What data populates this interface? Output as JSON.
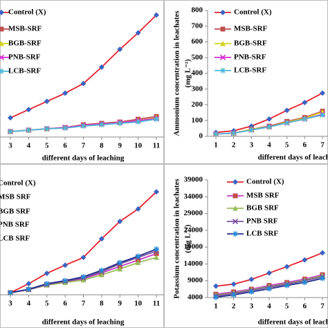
{
  "chart_data": [
    {
      "type": "line",
      "x": [
        3,
        4,
        5,
        6,
        7,
        8,
        9,
        10,
        11
      ],
      "xlim": [
        3,
        11
      ],
      "xticks": [
        3,
        4,
        5,
        6,
        7,
        8,
        9,
        10,
        11
      ],
      "ylim": [
        0,
        100
      ],
      "xlabel": "different days of leaching",
      "series": [
        {
          "name": "Control (X)",
          "color": "#e4202a",
          "marker_color": "#3a63c4",
          "marker": "diamond",
          "values": [
            14,
            20,
            26,
            32,
            39,
            51,
            64,
            76,
            89
          ]
        },
        {
          "name": "MSB-SRF",
          "color": "#c0504d",
          "marker_color": "#c0504d",
          "marker": "square",
          "values": [
            4,
            5,
            6,
            7,
            9,
            10,
            11,
            13,
            15
          ]
        },
        {
          "name": "BGB-SRF",
          "color": "#d4d41c",
          "marker_color": "#d4d41c",
          "marker": "triangle",
          "values": [
            4,
            5,
            6,
            7,
            8.5,
            9.5,
            10.5,
            12,
            14
          ]
        },
        {
          "name": "PNB-SRF",
          "color": "#d62ad6",
          "marker_color": "#d62ad6",
          "marker": "x",
          "values": [
            4,
            5,
            6,
            7,
            8.5,
            9.5,
            10.5,
            12,
            13.5
          ]
        },
        {
          "name": "LCB-SRF",
          "color": "#4cb8d8",
          "marker_color": "#4cb8d8",
          "marker": "star",
          "values": [
            4,
            5,
            6,
            6.5,
            8,
            9,
            10,
            11,
            13
          ]
        }
      ]
    },
    {
      "type": "line",
      "x": [
        1,
        2,
        3,
        4,
        5,
        6,
        7
      ],
      "xlim": [
        1,
        7
      ],
      "xticks": [
        1,
        2,
        3,
        4,
        5,
        6,
        7
      ],
      "ylim": [
        0,
        800
      ],
      "yticks": [
        0,
        100,
        200,
        300,
        400,
        500,
        600,
        700,
        800
      ],
      "ylabel": [
        "Ammonium concentration in leachates",
        "(mg L⁻¹)"
      ],
      "xlabel": "different days of leaching",
      "series": [
        {
          "name": "Control (X)",
          "color": "#e4202a",
          "marker_color": "#3a63c4",
          "marker": "diamond",
          "values": [
            25,
            35,
            65,
            110,
            165,
            215,
            275
          ]
        },
        {
          "name": "MSB-SRF",
          "color": "#c0504d",
          "marker_color": "#c0504d",
          "marker": "square",
          "values": [
            15,
            20,
            45,
            65,
            95,
            120,
            160
          ]
        },
        {
          "name": "BGB-SRF",
          "color": "#d4d41c",
          "marker_color": "#d4d41c",
          "marker": "triangle",
          "values": [
            15,
            20,
            45,
            60,
            90,
            115,
            155
          ]
        },
        {
          "name": "PNB-SRF",
          "color": "#d62ad6",
          "marker_color": "#d62ad6",
          "marker": "x",
          "values": [
            15,
            20,
            40,
            60,
            85,
            110,
            140
          ]
        },
        {
          "name": "LCB-SRF",
          "color": "#4cb8d8",
          "marker_color": "#4cb8d8",
          "marker": "star",
          "values": [
            15,
            20,
            40,
            60,
            85,
            110,
            135
          ]
        }
      ]
    },
    {
      "type": "line",
      "x": [
        3,
        4,
        5,
        6,
        7,
        8,
        9,
        10,
        11
      ],
      "xlim": [
        3,
        11
      ],
      "xticks": [
        3,
        4,
        5,
        6,
        7,
        8,
        9,
        10,
        11
      ],
      "ylim": [
        0,
        100
      ],
      "xlabel": "different days of leaching",
      "series": [
        {
          "name": "Control (X)",
          "color": "#e4202a",
          "marker_color": "#3a63c4",
          "marker": "diamond",
          "values": [
            1.6,
            8.6,
            16.7,
            23,
            29,
            43.5,
            57,
            66.7,
            80
          ]
        },
        {
          "name": "MSB SRF",
          "color": "#c43cc4",
          "marker_color": "#c0504d",
          "marker": "square",
          "values": [
            1.6,
            4,
            7.5,
            10,
            12.5,
            17,
            22,
            27,
            32
          ]
        },
        {
          "name": "BGB SRF",
          "color": "#9bbb59",
          "marker_color": "#9bbb59",
          "marker": "triangle",
          "values": [
            1.6,
            4,
            7.5,
            9.5,
            11.5,
            15.5,
            20,
            25,
            29
          ]
        },
        {
          "name": "PNB SRF",
          "color": "#7a4f9e",
          "marker_color": "#7a4f9e",
          "marker": "x",
          "values": [
            1.6,
            4,
            8,
            10.5,
            13,
            18,
            24,
            29,
            34
          ]
        },
        {
          "name": "LCB SRF",
          "color": "#1f2f8a",
          "marker_color": "#1f8ad8",
          "marker": "star",
          "values": [
            1.6,
            4.3,
            8.6,
            11,
            14,
            19,
            25,
            30,
            35.5
          ]
        }
      ]
    },
    {
      "type": "line",
      "x": [
        1,
        2,
        3,
        4,
        5,
        6,
        7
      ],
      "xlim": [
        1,
        7
      ],
      "xticks": [
        1,
        2,
        3,
        4,
        5,
        6,
        7
      ],
      "ylim": [
        4000,
        39000
      ],
      "yticks": [
        4000,
        9000,
        14000,
        19000,
        24000,
        29000,
        34000,
        39000
      ],
      "ylabel": [
        "Potassium concentration in leachates",
        "(mg L⁻¹)"
      ],
      "xlabel": "different days of leaching",
      "series": [
        {
          "name": "Control (X)",
          "color": "#e4202a",
          "marker_color": "#3a63c4",
          "marker": "diamond",
          "values": [
            7400,
            8000,
            9400,
            11300,
            13200,
            15200,
            17300
          ]
        },
        {
          "name": "MSB SRF",
          "color": "#c43cc4",
          "marker_color": "#c0504d",
          "marker": "square",
          "values": [
            5000,
            5700,
            6500,
            7600,
            8500,
            9500,
            10800
          ]
        },
        {
          "name": "BGB SRF",
          "color": "#9bbb59",
          "marker_color": "#9bbb59",
          "marker": "triangle",
          "values": [
            4700,
            5400,
            6300,
            7300,
            8200,
            9200,
            10500
          ]
        },
        {
          "name": "PNB SRF",
          "color": "#7a4f9e",
          "marker_color": "#7a4f9e",
          "marker": "x",
          "values": [
            4500,
            5200,
            6100,
            7100,
            8000,
            9000,
            10200
          ]
        },
        {
          "name": "LCB SRF",
          "color": "#1f2f8a",
          "marker_color": "#1f8ad8",
          "marker": "star",
          "values": [
            4100,
            4800,
            5700,
            6600,
            7600,
            8500,
            9700
          ]
        }
      ]
    }
  ]
}
